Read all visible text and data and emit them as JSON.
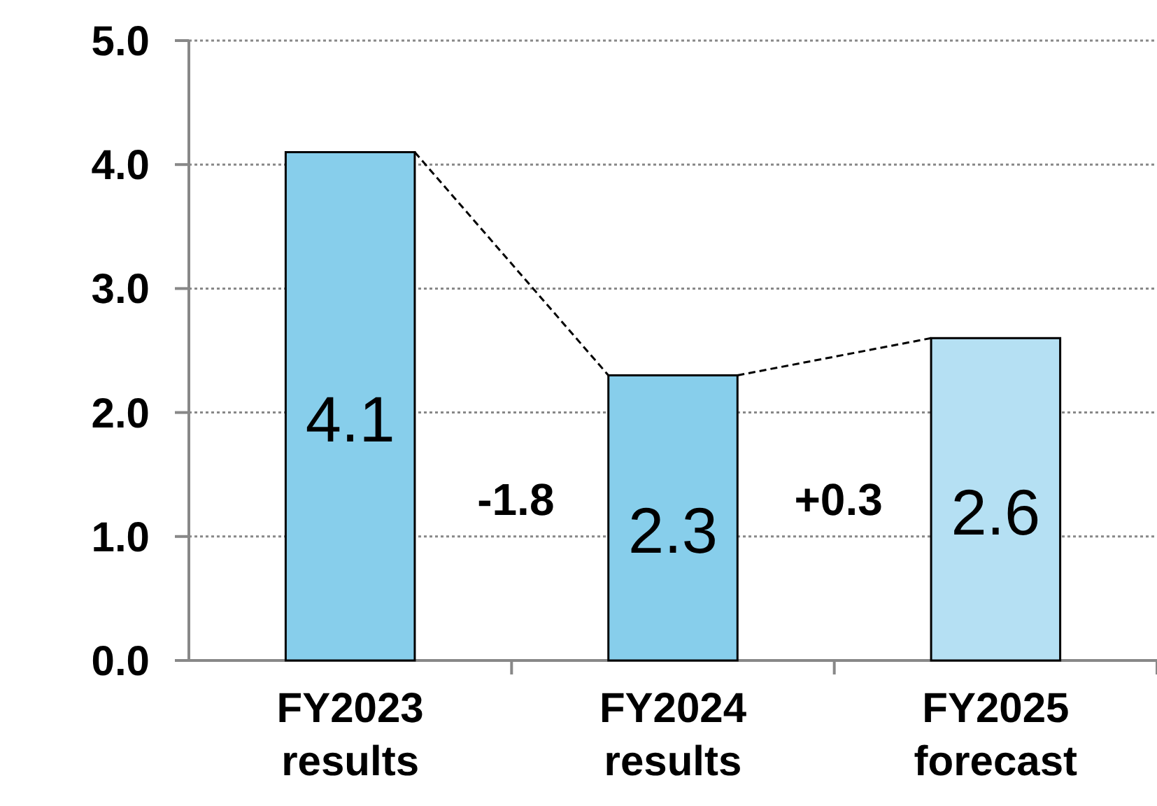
{
  "chart_data": {
    "type": "bar",
    "categories": [
      "FY2023\nresults",
      "FY2024\nresults",
      "FY2025\nforecast"
    ],
    "values": [
      4.1,
      2.3,
      2.6
    ],
    "colors": [
      "#87ceeb",
      "#87ceeb",
      "#b5e0f3"
    ],
    "ylim": [
      0,
      5
    ],
    "yticks": [
      {
        "value": 0,
        "label": "0.0"
      },
      {
        "value": 1,
        "label": "1.0"
      },
      {
        "value": 2,
        "label": "2.0"
      },
      {
        "value": 3,
        "label": "3.0"
      },
      {
        "value": 4,
        "label": "4.0"
      },
      {
        "value": 5,
        "label": "5.0"
      }
    ],
    "grid": "y",
    "data_labels": true,
    "annotations": [
      "-1.8",
      "+0.3"
    ]
  }
}
